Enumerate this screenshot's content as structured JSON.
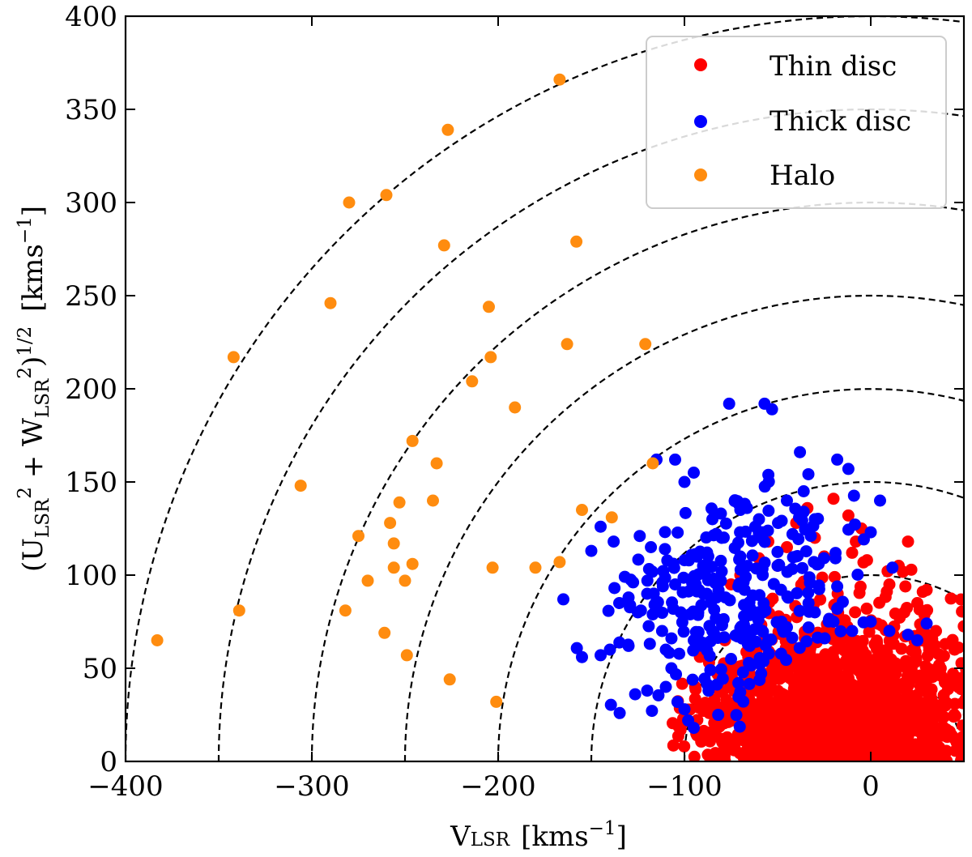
{
  "chart_data": {
    "type": "scatter",
    "title": "",
    "xlabel": {
      "main": "V",
      "sub": "LSR",
      "units": "[kms",
      "units_exp": "−1",
      "units_close": "]"
    },
    "ylabel": {
      "open": "(U",
      "sub1": "LSR",
      "sup1": "2",
      "plus": " + W",
      "sub2": "LSR",
      "sup2": "2",
      "close": ")",
      "exp": "1/2",
      "units": "[kms",
      "units_exp": "−1",
      "units_close": "]"
    },
    "xlim": [
      -400,
      50
    ],
    "ylim": [
      0,
      400
    ],
    "xticks": [
      -400,
      -300,
      -200,
      -100,
      0
    ],
    "xtick_labels": [
      "−400",
      "−300",
      "−200",
      "−100",
      "0"
    ],
    "yticks": [
      0,
      50,
      100,
      150,
      200,
      250,
      300,
      350,
      400
    ],
    "ytick_labels": [
      "0",
      "50",
      "100",
      "150",
      "200",
      "250",
      "300",
      "350",
      "400"
    ],
    "toomre_circles_radii": [
      50,
      100,
      150,
      200,
      250,
      300,
      350,
      400
    ],
    "legend_position": "top-right",
    "colors": {
      "thin": "#ff0000",
      "thick": "#0000ff",
      "halo": "#ff8c0f",
      "circle": "#000000"
    },
    "series": [
      {
        "name": "Thin disc",
        "key": "thin",
        "generated": {
          "count": 1600,
          "center": [
            -15,
            0
          ],
          "spread": [
            34,
            34
          ],
          "max_radius": 110,
          "seed": 17
        },
        "points": [
          [
            -20,
            141
          ],
          [
            20,
            118
          ],
          [
            30,
            92
          ],
          [
            -34,
            136
          ],
          [
            -5,
            125
          ],
          [
            -10,
            112
          ],
          [
            -25,
            110
          ],
          [
            -40,
            128
          ],
          [
            -45,
            115
          ],
          [
            -55,
            118
          ],
          [
            -60,
            109
          ],
          [
            -70,
            100
          ],
          [
            -75,
            95
          ],
          [
            -50,
            105
          ],
          [
            -30,
            120
          ],
          [
            -12,
            132
          ],
          [
            -2,
            108
          ],
          [
            15,
            105
          ],
          [
            25,
            85
          ],
          [
            35,
            70
          ],
          [
            40,
            63
          ],
          [
            45,
            60
          ],
          [
            10,
            95
          ],
          [
            18,
            80
          ],
          [
            -8,
            118
          ]
        ]
      },
      {
        "name": "Thick disc",
        "key": "thick",
        "generated": {
          "count": 260,
          "center": [
            -65,
            85
          ],
          "spread": [
            32,
            32
          ],
          "max_radius": 170,
          "min_radius": 70,
          "seed": 5
        },
        "points": [
          [
            -76,
            192
          ],
          [
            -57,
            192
          ],
          [
            -53,
            189
          ],
          [
            -115,
            162
          ],
          [
            -105,
            162
          ],
          [
            -38,
            166
          ],
          [
            -18,
            162
          ],
          [
            -12,
            157
          ],
          [
            -95,
            155
          ],
          [
            -100,
            150
          ],
          [
            -36,
            145
          ],
          [
            -45,
            140
          ],
          [
            -36,
            134
          ],
          [
            5,
            140
          ],
          [
            -62,
            126
          ],
          [
            -58,
            123
          ],
          [
            0,
            123
          ],
          [
            -30,
            130
          ],
          [
            -42,
            122
          ],
          [
            -145,
            126
          ],
          [
            -165,
            87
          ],
          [
            -155,
            56
          ],
          [
            -145,
            57
          ],
          [
            -140,
            60
          ],
          [
            -130,
            62
          ],
          [
            -135,
            85
          ],
          [
            -130,
            88
          ],
          [
            -120,
            38
          ],
          [
            -110,
            40
          ],
          [
            -107,
            50
          ],
          [
            -100,
            28
          ],
          [
            -98,
            22
          ],
          [
            -95,
            18
          ],
          [
            -110,
            60
          ],
          [
            -120,
            90
          ],
          [
            -125,
            80
          ],
          [
            -150,
            113
          ],
          [
            -138,
            118
          ],
          [
            -124,
            121
          ],
          [
            -118,
            115
          ],
          [
            -100,
            108
          ],
          [
            -90,
            105
          ],
          [
            -80,
            102
          ],
          [
            -70,
            110
          ],
          [
            -30,
            80
          ],
          [
            -20,
            75
          ],
          [
            -10,
            70
          ],
          [
            0,
            75
          ],
          [
            10,
            70
          ],
          [
            25,
            65
          ],
          [
            30,
            74
          ],
          [
            20,
            68
          ],
          [
            -45,
            72
          ],
          [
            -55,
            65
          ],
          [
            -85,
            70
          ],
          [
            -95,
            65
          ],
          [
            -75,
            55
          ],
          [
            -65,
            62
          ],
          [
            -112,
            70
          ],
          [
            -102,
            80
          ],
          [
            -88,
            90
          ],
          [
            -78,
            88
          ],
          [
            -68,
            78
          ],
          [
            -58,
            80
          ],
          [
            -105,
            95
          ],
          [
            -85,
            130
          ],
          [
            -80,
            120
          ],
          [
            -70,
            135
          ],
          [
            -60,
            130
          ],
          [
            -50,
            105
          ],
          [
            -40,
            110
          ]
        ]
      },
      {
        "name": "Halo",
        "key": "halo",
        "points": [
          [
            -167,
            366
          ],
          [
            -227,
            339
          ],
          [
            -280,
            300
          ],
          [
            -260,
            304
          ],
          [
            -229,
            277
          ],
          [
            -158,
            279
          ],
          [
            -290,
            246
          ],
          [
            -205,
            244
          ],
          [
            -342,
            217
          ],
          [
            -204,
            217
          ],
          [
            -163,
            224
          ],
          [
            -121,
            224
          ],
          [
            -214,
            204
          ],
          [
            -191,
            190
          ],
          [
            -246,
            172
          ],
          [
            -233,
            160
          ],
          [
            -117,
            160
          ],
          [
            -306,
            148
          ],
          [
            -253,
            139
          ],
          [
            -235,
            140
          ],
          [
            -155,
            135
          ],
          [
            -139,
            131
          ],
          [
            -258,
            128
          ],
          [
            -256,
            117
          ],
          [
            -275,
            121
          ],
          [
            -256,
            104
          ],
          [
            -246,
            106
          ],
          [
            -203,
            104
          ],
          [
            -180,
            104
          ],
          [
            -167,
            107
          ],
          [
            -270,
            97
          ],
          [
            -250,
            97
          ],
          [
            -282,
            81
          ],
          [
            -339,
            81
          ],
          [
            -261,
            69
          ],
          [
            -383,
            65
          ],
          [
            -249,
            57
          ],
          [
            -226,
            44
          ],
          [
            -201,
            32
          ]
        ]
      }
    ]
  }
}
